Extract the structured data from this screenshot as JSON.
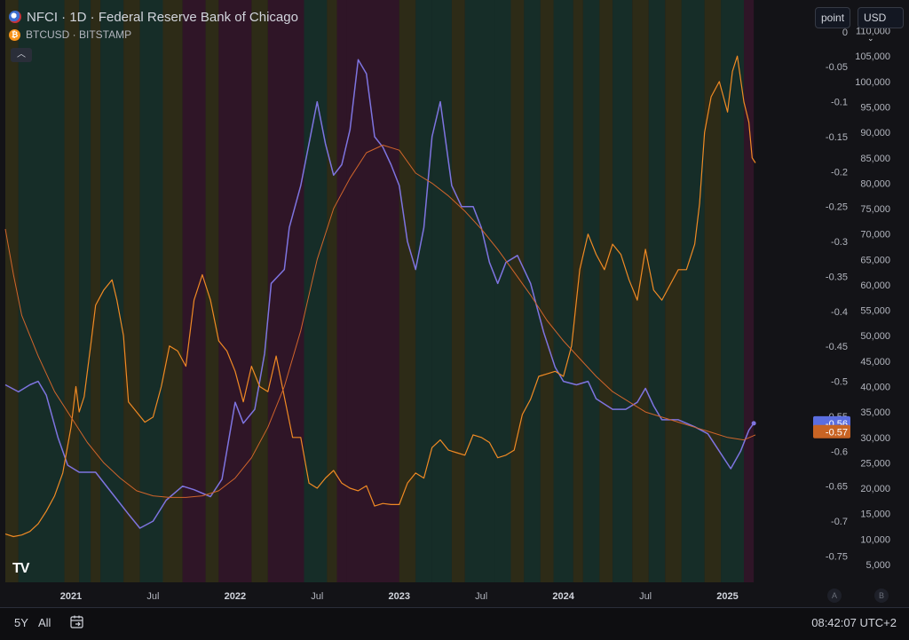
{
  "legend": {
    "series1": "NFCI · 1D · Federal Reserve Bank of Chicago",
    "series2": "BTCUSD · BITSTAMP"
  },
  "controls": {
    "scale_mode": "point",
    "currency": "USD",
    "collapse_icon": "chevron-up-icon"
  },
  "bottom_bar": {
    "range_5y": "5Y",
    "range_all": "All",
    "goto_icon": "calendar-goto-icon",
    "clock": "08:42:07 UTC+2"
  },
  "axis_buttons": {
    "a": "A",
    "b": "B"
  },
  "colors": {
    "background": "#131317",
    "nfci": "#7e74e0",
    "btc": "#f08a24",
    "btc_ma": "#d0652b",
    "band_green": "#17322b",
    "band_red": "#35162a",
    "band_yellow": "#333018",
    "nfci_label_bg": "#5b6ee0",
    "btc_label_bg": "#c86424"
  },
  "chart_data": {
    "type": "line",
    "x_axis": {
      "tick_labels": [
        "2021",
        "Jul",
        "2022",
        "Jul",
        "2023",
        "Jul",
        "2024",
        "Jul",
        "2025"
      ],
      "tick_dates": [
        2021.0,
        2021.5,
        2022.0,
        2022.5,
        2023.0,
        2023.5,
        2024.0,
        2024.5,
        2025.0
      ],
      "range": [
        2020.6,
        2025.5
      ]
    },
    "left_axis": {
      "tick_labels": [
        "0",
        "-0.05",
        "-0.1",
        "-0.15",
        "-0.2",
        "-0.25",
        "-0.3",
        "-0.35",
        "-0.4",
        "-0.45",
        "-0.5",
        "-0.55",
        "-0.6",
        "-0.65",
        "-0.7",
        "-0.75"
      ],
      "ticks": [
        0,
        -0.05,
        -0.1,
        -0.15,
        -0.2,
        -0.25,
        -0.3,
        -0.35,
        -0.4,
        -0.45,
        -0.5,
        -0.55,
        -0.6,
        -0.65,
        -0.7,
        -0.75
      ],
      "range": [
        -0.7875,
        0.0125
      ]
    },
    "right_axis": {
      "tick_labels": [
        "110,000",
        "105,000",
        "100,000",
        "95,000",
        "90,000",
        "85,000",
        "80,000",
        "75,000",
        "70,000",
        "65,000",
        "60,000",
        "55,000",
        "50,000",
        "45,000",
        "40,000",
        "35,000",
        "30,000",
        "25,000",
        "20,000",
        "15,000",
        "10,000",
        "5,000"
      ],
      "ticks": [
        110000,
        105000,
        100000,
        95000,
        90000,
        85000,
        80000,
        75000,
        70000,
        65000,
        60000,
        55000,
        50000,
        45000,
        40000,
        35000,
        30000,
        25000,
        20000,
        15000,
        10000,
        5000
      ],
      "range": [
        1500,
        111500
      ]
    },
    "price_labels": {
      "nfci": "-0.56",
      "btc": "-0.57"
    },
    "series": [
      {
        "name": "NFCI",
        "axis": "left",
        "points": [
          [
            2020.6,
            -0.505
          ],
          [
            2020.68,
            -0.515
          ],
          [
            2020.75,
            -0.505
          ],
          [
            2020.8,
            -0.5
          ],
          [
            2020.85,
            -0.52
          ],
          [
            2020.92,
            -0.58
          ],
          [
            2020.98,
            -0.62
          ],
          [
            2021.05,
            -0.63
          ],
          [
            2021.15,
            -0.63
          ],
          [
            2021.25,
            -0.66
          ],
          [
            2021.35,
            -0.69
          ],
          [
            2021.42,
            -0.71
          ],
          [
            2021.5,
            -0.7
          ],
          [
            2021.58,
            -0.67
          ],
          [
            2021.68,
            -0.65
          ],
          [
            2021.75,
            -0.655
          ],
          [
            2021.85,
            -0.665
          ],
          [
            2021.92,
            -0.64
          ],
          [
            2022.0,
            -0.53
          ],
          [
            2022.05,
            -0.56
          ],
          [
            2022.12,
            -0.54
          ],
          [
            2022.18,
            -0.46
          ],
          [
            2022.22,
            -0.36
          ],
          [
            2022.3,
            -0.34
          ],
          [
            2022.33,
            -0.28
          ],
          [
            2022.4,
            -0.22
          ],
          [
            2022.45,
            -0.16
          ],
          [
            2022.5,
            -0.1
          ],
          [
            2022.55,
            -0.16
          ],
          [
            2022.6,
            -0.205
          ],
          [
            2022.65,
            -0.19
          ],
          [
            2022.7,
            -0.14
          ],
          [
            2022.75,
            -0.04
          ],
          [
            2022.8,
            -0.06
          ],
          [
            2022.85,
            -0.15
          ],
          [
            2022.9,
            -0.165
          ],
          [
            2022.95,
            -0.19
          ],
          [
            2023.0,
            -0.22
          ],
          [
            2023.05,
            -0.3
          ],
          [
            2023.1,
            -0.34
          ],
          [
            2023.15,
            -0.28
          ],
          [
            2023.2,
            -0.15
          ],
          [
            2023.25,
            -0.1
          ],
          [
            2023.32,
            -0.22
          ],
          [
            2023.38,
            -0.25
          ],
          [
            2023.45,
            -0.25
          ],
          [
            2023.5,
            -0.28
          ],
          [
            2023.55,
            -0.33
          ],
          [
            2023.6,
            -0.36
          ],
          [
            2023.65,
            -0.33
          ],
          [
            2023.72,
            -0.32
          ],
          [
            2023.8,
            -0.36
          ],
          [
            2023.88,
            -0.43
          ],
          [
            2023.95,
            -0.48
          ],
          [
            2024.0,
            -0.5
          ],
          [
            2024.08,
            -0.505
          ],
          [
            2024.15,
            -0.5
          ],
          [
            2024.2,
            -0.525
          ],
          [
            2024.3,
            -0.54
          ],
          [
            2024.38,
            -0.54
          ],
          [
            2024.45,
            -0.53
          ],
          [
            2024.5,
            -0.51
          ],
          [
            2024.55,
            -0.535
          ],
          [
            2024.6,
            -0.555
          ],
          [
            2024.7,
            -0.555
          ],
          [
            2024.8,
            -0.565
          ],
          [
            2024.88,
            -0.575
          ],
          [
            2024.95,
            -0.6
          ],
          [
            2025.02,
            -0.625
          ],
          [
            2025.08,
            -0.6
          ],
          [
            2025.13,
            -0.57
          ],
          [
            2025.16,
            -0.56
          ]
        ]
      },
      {
        "name": "BTCUSD",
        "axis": "right",
        "points": [
          [
            2020.6,
            11000
          ],
          [
            2020.65,
            10500
          ],
          [
            2020.7,
            10800
          ],
          [
            2020.75,
            11500
          ],
          [
            2020.8,
            13000
          ],
          [
            2020.85,
            15500
          ],
          [
            2020.9,
            18500
          ],
          [
            2020.95,
            23000
          ],
          [
            2021.0,
            32000
          ],
          [
            2021.03,
            40000
          ],
          [
            2021.05,
            35000
          ],
          [
            2021.08,
            38000
          ],
          [
            2021.12,
            48000
          ],
          [
            2021.15,
            56000
          ],
          [
            2021.2,
            59000
          ],
          [
            2021.25,
            61000
          ],
          [
            2021.28,
            57000
          ],
          [
            2021.32,
            50000
          ],
          [
            2021.35,
            37000
          ],
          [
            2021.4,
            35000
          ],
          [
            2021.45,
            33000
          ],
          [
            2021.5,
            34000
          ],
          [
            2021.55,
            40000
          ],
          [
            2021.6,
            48000
          ],
          [
            2021.65,
            47000
          ],
          [
            2021.7,
            44000
          ],
          [
            2021.75,
            57000
          ],
          [
            2021.8,
            62000
          ],
          [
            2021.85,
            57000
          ],
          [
            2021.9,
            49000
          ],
          [
            2021.95,
            47000
          ],
          [
            2022.0,
            43000
          ],
          [
            2022.05,
            37000
          ],
          [
            2022.1,
            44000
          ],
          [
            2022.15,
            40000
          ],
          [
            2022.2,
            39000
          ],
          [
            2022.25,
            46000
          ],
          [
            2022.3,
            38000
          ],
          [
            2022.35,
            30000
          ],
          [
            2022.4,
            30000
          ],
          [
            2022.45,
            21000
          ],
          [
            2022.5,
            20000
          ],
          [
            2022.55,
            22000
          ],
          [
            2022.6,
            23500
          ],
          [
            2022.65,
            21000
          ],
          [
            2022.7,
            20000
          ],
          [
            2022.75,
            19500
          ],
          [
            2022.8,
            20500
          ],
          [
            2022.85,
            16500
          ],
          [
            2022.9,
            17000
          ],
          [
            2022.95,
            16800
          ],
          [
            2023.0,
            16800
          ],
          [
            2023.05,
            21000
          ],
          [
            2023.1,
            23000
          ],
          [
            2023.15,
            22000
          ],
          [
            2023.2,
            28000
          ],
          [
            2023.25,
            29500
          ],
          [
            2023.3,
            27500
          ],
          [
            2023.35,
            27000
          ],
          [
            2023.4,
            26500
          ],
          [
            2023.45,
            30500
          ],
          [
            2023.5,
            30000
          ],
          [
            2023.55,
            29000
          ],
          [
            2023.6,
            26000
          ],
          [
            2023.65,
            26500
          ],
          [
            2023.7,
            27500
          ],
          [
            2023.75,
            34500
          ],
          [
            2023.8,
            37500
          ],
          [
            2023.85,
            42000
          ],
          [
            2023.9,
            42500
          ],
          [
            2023.95,
            43000
          ],
          [
            2024.0,
            42000
          ],
          [
            2024.05,
            48000
          ],
          [
            2024.1,
            63000
          ],
          [
            2024.15,
            70000
          ],
          [
            2024.2,
            66000
          ],
          [
            2024.25,
            63000
          ],
          [
            2024.3,
            68000
          ],
          [
            2024.35,
            66000
          ],
          [
            2024.4,
            61000
          ],
          [
            2024.45,
            57000
          ],
          [
            2024.5,
            67000
          ],
          [
            2024.55,
            59000
          ],
          [
            2024.6,
            57000
          ],
          [
            2024.65,
            60000
          ],
          [
            2024.7,
            63000
          ],
          [
            2024.75,
            63000
          ],
          [
            2024.8,
            68000
          ],
          [
            2024.83,
            76000
          ],
          [
            2024.86,
            90000
          ],
          [
            2024.9,
            97000
          ],
          [
            2024.95,
            100000
          ],
          [
            2025.0,
            94000
          ],
          [
            2025.03,
            102000
          ],
          [
            2025.06,
            105000
          ],
          [
            2025.1,
            96000
          ],
          [
            2025.13,
            92000
          ],
          [
            2025.15,
            85000
          ],
          [
            2025.17,
            84000
          ]
        ]
      },
      {
        "axis": "right",
        "points": [
          [
            2020.6,
            71000
          ],
          [
            2020.65,
            62000
          ],
          [
            2020.7,
            54000
          ],
          [
            2020.8,
            46000
          ],
          [
            2020.9,
            39000
          ],
          [
            2021.0,
            34000
          ],
          [
            2021.1,
            29000
          ],
          [
            2021.2,
            25000
          ],
          [
            2021.3,
            22000
          ],
          [
            2021.4,
            19500
          ],
          [
            2021.5,
            18500
          ],
          [
            2021.6,
            18200
          ],
          [
            2021.7,
            18200
          ],
          [
            2021.8,
            18500
          ],
          [
            2021.9,
            19500
          ],
          [
            2022.0,
            22000
          ],
          [
            2022.1,
            26000
          ],
          [
            2022.2,
            32000
          ],
          [
            2022.3,
            40000
          ],
          [
            2022.4,
            51000
          ],
          [
            2022.5,
            65000
          ],
          [
            2022.6,
            75000
          ],
          [
            2022.7,
            81000
          ],
          [
            2022.8,
            86000
          ],
          [
            2022.9,
            87500
          ],
          [
            2023.0,
            86500
          ],
          [
            2023.1,
            82000
          ],
          [
            2023.2,
            80000
          ],
          [
            2023.3,
            77500
          ],
          [
            2023.4,
            74500
          ],
          [
            2023.5,
            71000
          ],
          [
            2023.6,
            67000
          ],
          [
            2023.7,
            62500
          ],
          [
            2023.8,
            58000
          ],
          [
            2023.9,
            53000
          ],
          [
            2024.0,
            49000
          ],
          [
            2024.1,
            45500
          ],
          [
            2024.2,
            42000
          ],
          [
            2024.3,
            39000
          ],
          [
            2024.4,
            37000
          ],
          [
            2024.5,
            35000
          ],
          [
            2024.6,
            34000
          ],
          [
            2024.7,
            33000
          ],
          [
            2024.8,
            32000
          ],
          [
            2024.9,
            31000
          ],
          [
            2025.0,
            30000
          ],
          [
            2025.1,
            29500
          ],
          [
            2025.17,
            30500
          ]
        ]
      }
    ],
    "background_bands": [
      [
        2020.6,
        2020.68,
        "yellow"
      ],
      [
        2020.68,
        2020.96,
        "green"
      ],
      [
        2020.96,
        2021.05,
        "yellow"
      ],
      [
        2021.05,
        2021.12,
        "green"
      ],
      [
        2021.12,
        2021.18,
        "yellow"
      ],
      [
        2021.18,
        2021.32,
        "green"
      ],
      [
        2021.32,
        2021.42,
        "yellow"
      ],
      [
        2021.42,
        2021.56,
        "green"
      ],
      [
        2021.56,
        2021.68,
        "yellow"
      ],
      [
        2021.68,
        2021.82,
        "red"
      ],
      [
        2021.82,
        2021.9,
        "yellow"
      ],
      [
        2021.9,
        2022.1,
        "red"
      ],
      [
        2022.1,
        2022.2,
        "yellow"
      ],
      [
        2022.2,
        2022.42,
        "red"
      ],
      [
        2022.42,
        2022.56,
        "green"
      ],
      [
        2022.56,
        2022.62,
        "yellow"
      ],
      [
        2022.62,
        2022.68,
        "red"
      ],
      [
        2022.68,
        2023.0,
        "red"
      ],
      [
        2023.0,
        2023.1,
        "yellow"
      ],
      [
        2023.1,
        2023.2,
        "green"
      ],
      [
        2023.2,
        2023.32,
        "green"
      ],
      [
        2023.32,
        2023.4,
        "yellow"
      ],
      [
        2023.4,
        2023.58,
        "green"
      ],
      [
        2023.58,
        2023.68,
        "green"
      ],
      [
        2023.68,
        2023.76,
        "yellow"
      ],
      [
        2023.76,
        2023.86,
        "green"
      ],
      [
        2023.86,
        2023.94,
        "yellow"
      ],
      [
        2023.94,
        2024.06,
        "green"
      ],
      [
        2024.06,
        2024.12,
        "yellow"
      ],
      [
        2024.12,
        2024.22,
        "green"
      ],
      [
        2024.22,
        2024.3,
        "yellow"
      ],
      [
        2024.3,
        2024.42,
        "green"
      ],
      [
        2024.42,
        2024.52,
        "yellow"
      ],
      [
        2024.52,
        2024.62,
        "green"
      ],
      [
        2024.62,
        2024.72,
        "yellow"
      ],
      [
        2024.72,
        2024.86,
        "green"
      ],
      [
        2024.86,
        2024.96,
        "yellow"
      ],
      [
        2024.96,
        2025.1,
        "green"
      ],
      [
        2025.1,
        2025.16,
        "red"
      ]
    ]
  }
}
